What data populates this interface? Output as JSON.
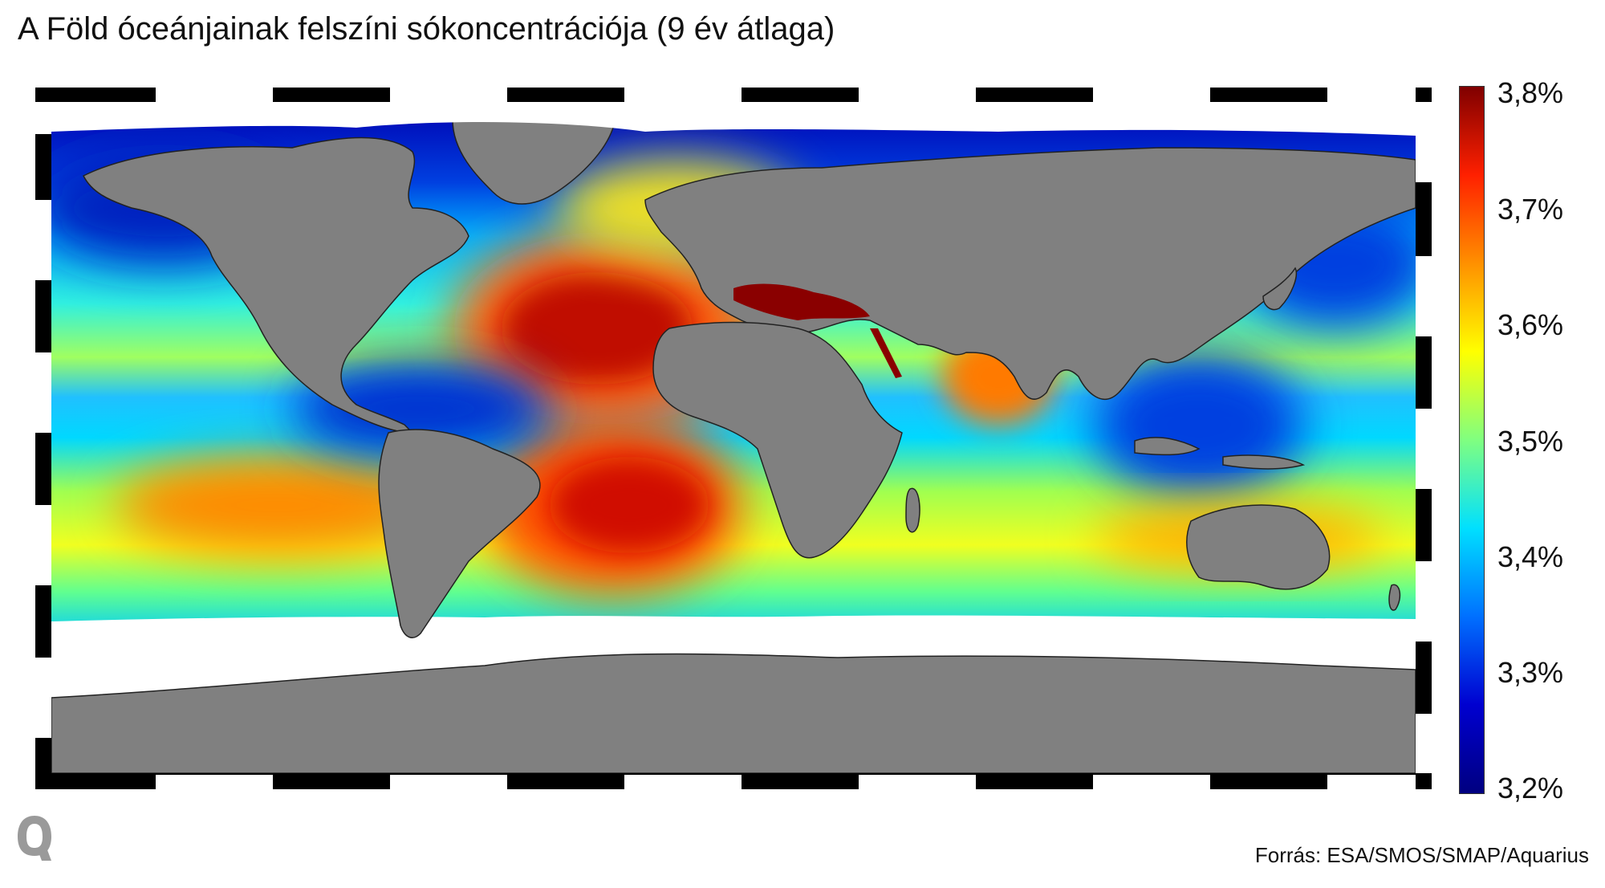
{
  "title": "A Föld óceánjainak felszíni sókoncentrációja (9 év átlaga)",
  "colorbar": {
    "labels": [
      "3,8%",
      "3,7%",
      "3,6%",
      "3,5%",
      "3,4%",
      "3,3%",
      "3,2%"
    ],
    "min": 3.2,
    "max": 3.8,
    "colors_top_to_bottom": [
      "#7f0000",
      "#ff2000",
      "#ff9000",
      "#ffff00",
      "#80ff80",
      "#00e0ff",
      "#0070ff",
      "#0000d0",
      "#000080"
    ]
  },
  "map": {
    "land_color": "#808080",
    "ice_color": "#ffffff",
    "frame_colors": [
      "#000000",
      "#ffffff"
    ]
  },
  "logo_icon": "q-logo-icon",
  "source": "Forrás: ESA/SMOS/SMAP/Aquarius"
}
